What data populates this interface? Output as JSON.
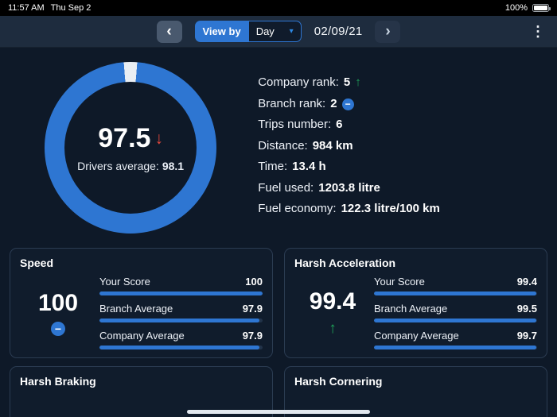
{
  "status_bar": {
    "time": "11:57 AM",
    "date": "Thu Sep 2",
    "battery_percent": "100%"
  },
  "nav": {
    "view_by_label": "View by",
    "period": "Day",
    "date": "02/09/21"
  },
  "icons": {
    "back": "‹",
    "forward": "›",
    "dropdown": "▾",
    "up_arrow": "↑",
    "down_arrow": "↓",
    "minus": "−",
    "ellipsis": "⋮"
  },
  "summary": {
    "score": "97.5",
    "score_trend": "down",
    "donut_percent": 97.5,
    "drivers_average_label": "Drivers average:",
    "drivers_average": "98.1",
    "stats": [
      {
        "label": "Company rank:",
        "value": "5",
        "icon": "up"
      },
      {
        "label": "Branch rank:",
        "value": "2",
        "icon": "minus"
      },
      {
        "label": "Trips number:",
        "value": "6"
      },
      {
        "label": "Distance:",
        "value": "984 km"
      },
      {
        "label": "Time:",
        "value": "13.4 h"
      },
      {
        "label": "Fuel used:",
        "value": "1203.8 litre"
      },
      {
        "label": "Fuel economy:",
        "value": "122.3 litre/100 km"
      }
    ]
  },
  "cards": [
    {
      "title": "Speed",
      "score": "100",
      "trend": "minus",
      "rows": [
        {
          "label": "Your Score",
          "value": "100",
          "pct": 100
        },
        {
          "label": "Branch Average",
          "value": "97.9",
          "pct": 97.9
        },
        {
          "label": "Company Average",
          "value": "97.9",
          "pct": 97.9
        }
      ]
    },
    {
      "title": "Harsh Acceleration",
      "score": "99.4",
      "trend": "up",
      "rows": [
        {
          "label": "Your Score",
          "value": "99.4",
          "pct": 99.4
        },
        {
          "label": "Branch Average",
          "value": "99.5",
          "pct": 99.5
        },
        {
          "label": "Company Average",
          "value": "99.7",
          "pct": 99.7
        }
      ]
    },
    {
      "title": "Harsh Braking"
    },
    {
      "title": "Harsh Cornering"
    }
  ],
  "colors": {
    "accent_blue": "#2e76d2",
    "positive_green": "#1fa65a",
    "negative_red": "#e2483d",
    "donut_remainder": "#e9eef3"
  }
}
